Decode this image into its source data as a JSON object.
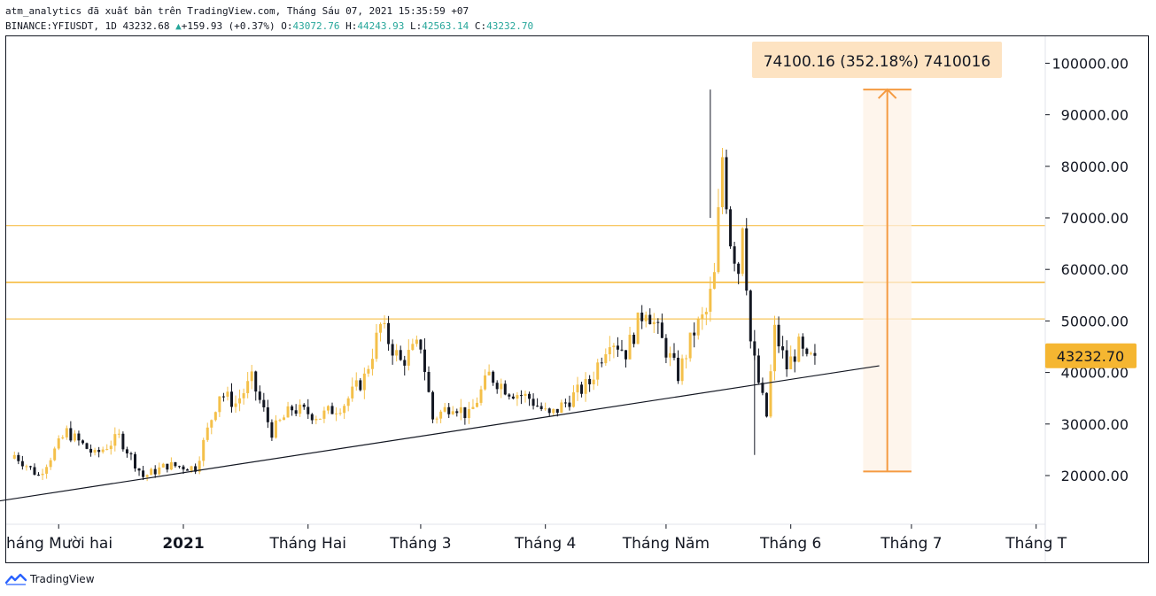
{
  "header": {
    "line1": "atm_analytics đã xuất bản trên TradingView.com, Tháng Sáu 07, 2021 15:35:59 +07",
    "symbol": "BINANCE:YFIUSDT, 1D",
    "last": "43232.68",
    "change": "+159.93 (+0.37%)",
    "o_label": "O:",
    "o": "43072.76",
    "h_label": "H:",
    "h": "44243.93",
    "l_label": "L:",
    "l": "42563.14",
    "c_label": "C:",
    "c": "43232.70"
  },
  "branding": {
    "name": "TradingView"
  },
  "measure_label": "74100.16 (352.18%) 7410016",
  "colors": {
    "up": "#26a69a",
    "candle_up": "#f4c04a",
    "candle_down": "#131722",
    "level_line": "#f5b631",
    "measure": "#f59b42",
    "price_tag": "#f5b631"
  },
  "chart_data": {
    "type": "candlestick",
    "symbol": "YFIUSDT",
    "interval": "1D",
    "yticks": [
      20000,
      30000,
      40000,
      50000,
      60000,
      70000,
      80000,
      90000,
      100000
    ],
    "ytick_labels": [
      "20000.00",
      "30000.00",
      "40000.00",
      "50000.00",
      "60000.00",
      "70000.00",
      "80000.00",
      "90000.00",
      "100000.00"
    ],
    "xticks": [
      {
        "label": "háng Mười hai",
        "date": "2020-12-01",
        "bold": false
      },
      {
        "label": "2021",
        "date": "2021-01-01",
        "bold": true
      },
      {
        "label": "Tháng Hai",
        "date": "2021-02-01",
        "bold": false
      },
      {
        "label": "Tháng 3",
        "date": "2021-03-01",
        "bold": false
      },
      {
        "label": "Tháng 4",
        "date": "2021-04-01",
        "bold": false
      },
      {
        "label": "Tháng Năm",
        "date": "2021-05-01",
        "bold": false
      },
      {
        "label": "Tháng 6",
        "date": "2021-06-01",
        "bold": false
      },
      {
        "label": "Tháng 7",
        "date": "2021-07-01",
        "bold": false
      },
      {
        "label": "Tháng T",
        "date": "2021-08-01",
        "bold": false
      }
    ],
    "last_price": 43232.7,
    "last_price_label": "43232.70",
    "horizontal_levels": [
      68500,
      57500,
      50400
    ],
    "trendline": [
      {
        "date": "2020-11-14",
        "price": 14800
      },
      {
        "date": "2021-06-23",
        "price": 41300
      }
    ],
    "measure": {
      "date_start": "2021-06-19",
      "date_end": "2021-07-01",
      "from": 20800,
      "to": 94900
    },
    "anchors": [
      {
        "date": "2020-11-20",
        "close": 24000
      },
      {
        "date": "2020-11-26",
        "close": 20000
      },
      {
        "date": "2020-12-03",
        "close": 28500
      },
      {
        "date": "2020-12-10",
        "close": 24000
      },
      {
        "date": "2020-12-16",
        "close": 27500
      },
      {
        "date": "2020-12-22",
        "close": 19800
      },
      {
        "date": "2020-12-28",
        "close": 22000
      },
      {
        "date": "2021-01-04",
        "close": 21500
      },
      {
        "date": "2021-01-10",
        "close": 36000
      },
      {
        "date": "2021-01-14",
        "close": 34000
      },
      {
        "date": "2021-01-18",
        "close": 38500
      },
      {
        "date": "2021-01-23",
        "close": 28500
      },
      {
        "date": "2021-01-28",
        "close": 33000
      },
      {
        "date": "2021-02-04",
        "close": 31500
      },
      {
        "date": "2021-02-10",
        "close": 34000
      },
      {
        "date": "2021-02-15",
        "close": 39000
      },
      {
        "date": "2021-02-19",
        "close": 49000
      },
      {
        "date": "2021-02-24",
        "close": 42000
      },
      {
        "date": "2021-03-01",
        "close": 45500
      },
      {
        "date": "2021-03-04",
        "close": 31000
      },
      {
        "date": "2021-03-09",
        "close": 34000
      },
      {
        "date": "2021-03-13",
        "close": 31500
      },
      {
        "date": "2021-03-18",
        "close": 39500
      },
      {
        "date": "2021-03-23",
        "close": 36500
      },
      {
        "date": "2021-03-28",
        "close": 35000
      },
      {
        "date": "2021-04-02",
        "close": 31500
      },
      {
        "date": "2021-04-08",
        "close": 35500
      },
      {
        "date": "2021-04-12",
        "close": 38000
      },
      {
        "date": "2021-04-17",
        "close": 47000
      },
      {
        "date": "2021-04-21",
        "close": 44000
      },
      {
        "date": "2021-04-26",
        "close": 53000
      },
      {
        "date": "2021-04-30",
        "close": 46000
      },
      {
        "date": "2021-05-04",
        "close": 39500
      },
      {
        "date": "2021-05-08",
        "close": 48000
      },
      {
        "date": "2021-05-11",
        "close": 51500
      },
      {
        "date": "2021-05-13",
        "close": 58500
      },
      {
        "date": "2021-05-15",
        "close": 82000
      },
      {
        "date": "2021-05-17",
        "close": 66000
      },
      {
        "date": "2021-05-19",
        "close": 60000
      },
      {
        "date": "2021-05-20",
        "close": 70000
      },
      {
        "date": "2021-05-22",
        "close": 46000
      },
      {
        "date": "2021-05-24",
        "close": 38000
      },
      {
        "date": "2021-05-26",
        "close": 31500
      },
      {
        "date": "2021-05-28",
        "close": 48000
      },
      {
        "date": "2021-05-31",
        "close": 41000
      },
      {
        "date": "2021-06-03",
        "close": 45000
      },
      {
        "date": "2021-06-05",
        "close": 42000
      },
      {
        "date": "2021-06-07",
        "close": 43232.7
      }
    ]
  }
}
